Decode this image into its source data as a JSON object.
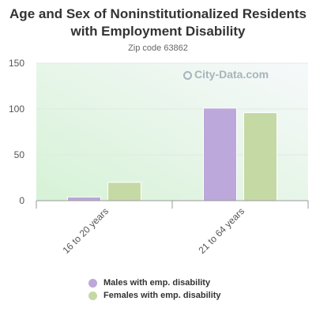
{
  "chart_data": {
    "type": "bar",
    "title": "Age and Sex of Noninstitutionalized Residents with Employment Disability",
    "subtitle": "Zip code 63862",
    "categories": [
      "16 to 20 years",
      "21 to 64 years"
    ],
    "series": [
      {
        "name": "Males with emp. disability",
        "values": [
          4,
          101
        ],
        "color": "#bca8da"
      },
      {
        "name": "Females with emp. disability",
        "values": [
          20,
          96
        ],
        "color": "#c5d9a5"
      }
    ],
    "ylim": [
      0,
      150
    ],
    "yticks": [
      "0",
      "50",
      "100",
      "150"
    ],
    "legend_position": "bottom"
  },
  "watermark": "City-Data.com"
}
